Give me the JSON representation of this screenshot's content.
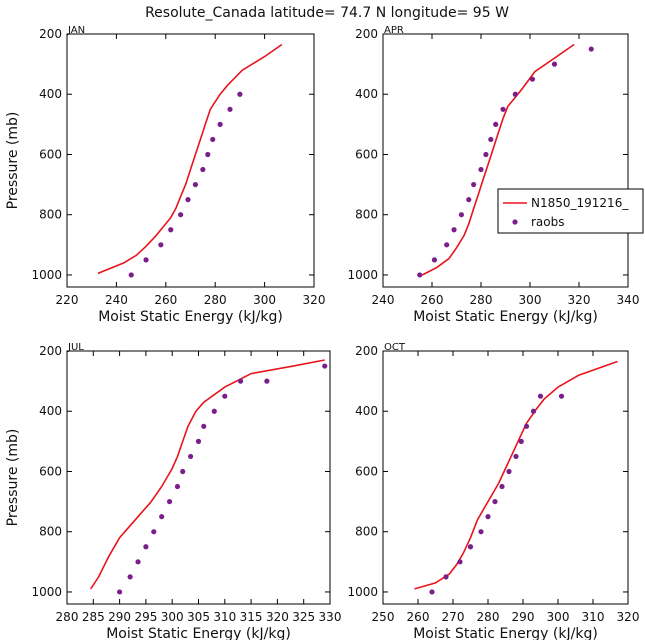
{
  "title": "Resolute_Canada  latitude= 74.7 N longitude= 95 W",
  "colors": {
    "model": "#e8141c",
    "obs": "#7a1f8a",
    "axes": "#000000"
  },
  "legend": {
    "items": [
      {
        "label": "N1850_191216_"
      },
      {
        "label": "raobs"
      }
    ]
  },
  "chart_data": [
    {
      "type": "line",
      "panel": "JAN",
      "xlabel": "Moist Static Energy (kJ/kg)",
      "ylabel": "Pressure (mb)",
      "xlim": [
        220,
        320
      ],
      "ylim": [
        200,
        1040
      ],
      "xticks": [
        220,
        240,
        260,
        280,
        300,
        320
      ],
      "yticks": [
        200,
        400,
        600,
        800,
        1000
      ],
      "series": [
        {
          "name": "N1850_191216_",
          "points": [
            [
              232.5,
              995
            ],
            [
              243,
              960
            ],
            [
              248,
              935
            ],
            [
              252,
              905
            ],
            [
              256,
              870
            ],
            [
              259,
              840
            ],
            [
              262,
              810
            ],
            [
              264,
              780
            ],
            [
              266,
              740
            ],
            [
              268,
              700
            ],
            [
              270,
              650
            ],
            [
              272,
              600
            ],
            [
              274,
              550
            ],
            [
              276,
              500
            ],
            [
              278,
              450
            ],
            [
              282,
              400
            ],
            [
              285,
              370
            ],
            [
              291,
              320
            ],
            [
              300,
              275
            ],
            [
              307,
              235
            ]
          ]
        },
        {
          "name": "raobs",
          "points": [
            [
              246,
              1000
            ],
            [
              252,
              950
            ],
            [
              258,
              900
            ],
            [
              262,
              850
            ],
            [
              266,
              800
            ],
            [
              269,
              750
            ],
            [
              272,
              700
            ],
            [
              275,
              650
            ],
            [
              277,
              600
            ],
            [
              279,
              550
            ],
            [
              282,
              500
            ],
            [
              286,
              450
            ],
            [
              290,
              400
            ]
          ]
        }
      ]
    },
    {
      "type": "line",
      "panel": "APR",
      "xlabel": "Moist Static Energy (kJ/kg)",
      "ylabel": "",
      "xlim": [
        240,
        340
      ],
      "ylim": [
        200,
        1040
      ],
      "xticks": [
        240,
        260,
        280,
        300,
        320,
        340
      ],
      "yticks": [
        200,
        400,
        600,
        800,
        1000
      ],
      "series": [
        {
          "name": "N1850_191216_",
          "points": [
            [
              256,
              1000
            ],
            [
              262,
              975
            ],
            [
              267,
              945
            ],
            [
              270,
              910
            ],
            [
              273,
              870
            ],
            [
              275,
              830
            ],
            [
              277,
              780
            ],
            [
              279,
              730
            ],
            [
              281,
              680
            ],
            [
              283,
              630
            ],
            [
              285,
              580
            ],
            [
              287,
              530
            ],
            [
              289,
              480
            ],
            [
              291,
              440
            ],
            [
              293,
              420
            ],
            [
              297,
              380
            ],
            [
              302,
              325
            ],
            [
              310,
              280
            ],
            [
              318,
              235
            ]
          ]
        },
        {
          "name": "raobs",
          "points": [
            [
              255,
              1000
            ],
            [
              261,
              950
            ],
            [
              266,
              900
            ],
            [
              269,
              850
            ],
            [
              272,
              800
            ],
            [
              275,
              750
            ],
            [
              277,
              700
            ],
            [
              280,
              650
            ],
            [
              282,
              600
            ],
            [
              284,
              550
            ],
            [
              286,
              500
            ],
            [
              289,
              450
            ],
            [
              294,
              400
            ],
            [
              301,
              350
            ],
            [
              310,
              300
            ],
            [
              325,
              250
            ]
          ]
        }
      ]
    },
    {
      "type": "line",
      "panel": "JUL",
      "xlabel": "Moist Static Energy (kJ/kg)",
      "ylabel": "Pressure (mb)",
      "xlim": [
        280,
        330
      ],
      "ylim": [
        200,
        1040
      ],
      "xticks": [
        280,
        285,
        290,
        295,
        300,
        305,
        310,
        315,
        320,
        325,
        330
      ],
      "yticks": [
        200,
        400,
        600,
        800,
        1000
      ],
      "series": [
        {
          "name": "N1850_191216_",
          "points": [
            [
              284.5,
              990
            ],
            [
              286,
              950
            ],
            [
              288,
              880
            ],
            [
              290,
              820
            ],
            [
              293,
              760
            ],
            [
              296,
              700
            ],
            [
              298,
              650
            ],
            [
              300,
              590
            ],
            [
              301,
              550
            ],
            [
              302,
              500
            ],
            [
              303,
              450
            ],
            [
              304.5,
              400
            ],
            [
              306,
              370
            ],
            [
              310,
              320
            ],
            [
              315,
              275
            ],
            [
              323,
              250
            ],
            [
              329,
              230
            ]
          ]
        },
        {
          "name": "raobs",
          "points": [
            [
              290,
              1000
            ],
            [
              292,
              950
            ],
            [
              293.5,
              900
            ],
            [
              295,
              850
            ],
            [
              296.5,
              800
            ],
            [
              298,
              750
            ],
            [
              299.5,
              700
            ],
            [
              301,
              650
            ],
            [
              302,
              600
            ],
            [
              303.5,
              550
            ],
            [
              305,
              500
            ],
            [
              306,
              450
            ],
            [
              308,
              400
            ],
            [
              310,
              350
            ],
            [
              313,
              300
            ],
            [
              318,
              300
            ],
            [
              329,
              250
            ]
          ]
        }
      ]
    },
    {
      "type": "line",
      "panel": "OCT",
      "xlabel": "Moist Static Energy (kJ/kg)",
      "ylabel": "",
      "xlim": [
        250,
        320
      ],
      "ylim": [
        200,
        1040
      ],
      "xticks": [
        250,
        260,
        270,
        280,
        290,
        300,
        310,
        320
      ],
      "yticks": [
        200,
        400,
        600,
        800,
        1000
      ],
      "series": [
        {
          "name": "N1850_191216_",
          "points": [
            [
              259,
              990
            ],
            [
              265,
              970
            ],
            [
              269,
              940
            ],
            [
              271,
              910
            ],
            [
              273,
              870
            ],
            [
              275,
              820
            ],
            [
              277,
              760
            ],
            [
              280,
              700
            ],
            [
              283,
              640
            ],
            [
              285,
              590
            ],
            [
              287,
              540
            ],
            [
              289,
              490
            ],
            [
              291,
              440
            ],
            [
              294,
              390
            ],
            [
              296,
              360
            ],
            [
              300,
              320
            ],
            [
              306,
              280
            ],
            [
              317,
              235
            ]
          ]
        },
        {
          "name": "raobs",
          "points": [
            [
              264,
              1000
            ],
            [
              268,
              950
            ],
            [
              272,
              900
            ],
            [
              275,
              850
            ],
            [
              278,
              800
            ],
            [
              280,
              750
            ],
            [
              282,
              700
            ],
            [
              284,
              650
            ],
            [
              286,
              600
            ],
            [
              288,
              550
            ],
            [
              289.5,
              500
            ],
            [
              291,
              450
            ],
            [
              293,
              400
            ],
            [
              295,
              350
            ],
            [
              301,
              350
            ]
          ]
        }
      ]
    }
  ]
}
